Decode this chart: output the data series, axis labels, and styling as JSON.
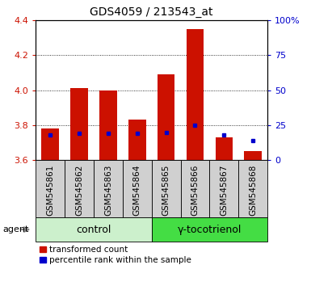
{
  "title": "GDS4059 / 213543_at",
  "samples": [
    "GSM545861",
    "GSM545862",
    "GSM545863",
    "GSM545864",
    "GSM545865",
    "GSM545866",
    "GSM545867",
    "GSM545868"
  ],
  "red_values": [
    3.78,
    4.01,
    4.0,
    3.83,
    4.09,
    4.35,
    3.73,
    3.65
  ],
  "blue_percentiles": [
    18,
    19,
    19,
    19,
    20,
    25,
    18,
    14
  ],
  "ylim_left": [
    3.6,
    4.4
  ],
  "ylim_right": [
    0,
    100
  ],
  "yticks_left": [
    3.6,
    3.8,
    4.0,
    4.2,
    4.4
  ],
  "yticks_right": [
    0,
    25,
    50,
    75,
    100
  ],
  "ytick_right_labels": [
    "0",
    "25",
    "50",
    "75",
    "100%"
  ],
  "groups": [
    {
      "label": "control",
      "color": "#ccf0cc"
    },
    {
      "label": "γ-tocotrienol",
      "color": "#44dd44"
    }
  ],
  "bar_color": "#cc1100",
  "blue_color": "#0000cc",
  "bar_bottom": 3.6,
  "bg_xticklabel": "#d0d0d0",
  "agent_label": "agent",
  "legend_red": "transformed count",
  "legend_blue": "percentile rank within the sample"
}
